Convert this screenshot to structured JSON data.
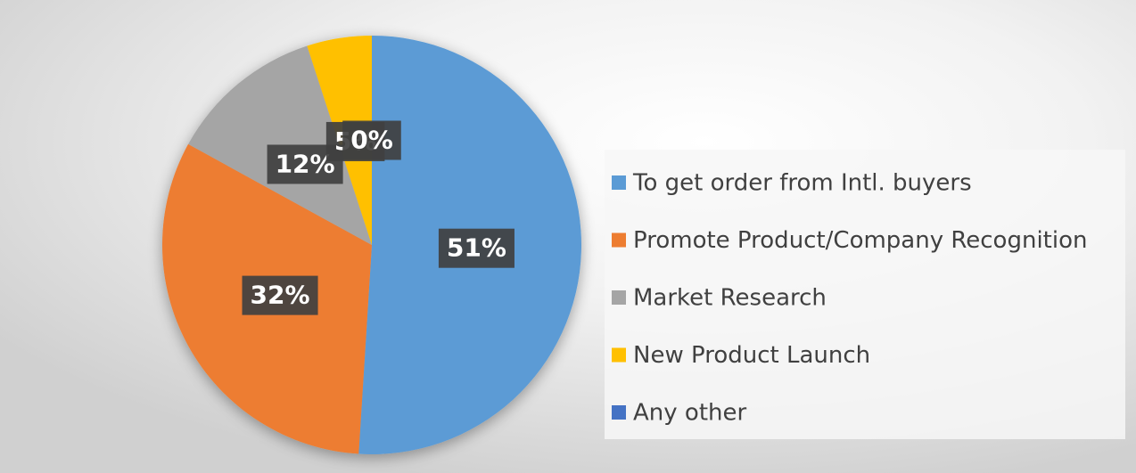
{
  "chart_data": {
    "type": "pie",
    "categories": [
      "To get order from Intl. buyers",
      "Promote Product/Company Recognition",
      "Market Research",
      "New Product Launch",
      "Any other"
    ],
    "values": [
      51,
      32,
      12,
      5,
      0
    ],
    "value_labels": [
      "51%",
      "32%",
      "12%",
      "5%",
      "0%"
    ],
    "colors": [
      "#5b9bd5",
      "#ed7d31",
      "#a5a5a5",
      "#ffc000",
      "#4472c4"
    ],
    "legend": "right"
  }
}
